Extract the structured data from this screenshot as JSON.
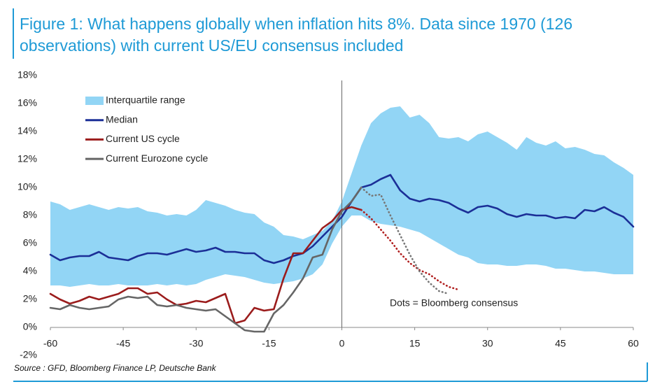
{
  "chart_data": {
    "type": "line",
    "title_lines": [
      "Figure 1: What happens globally when inflation hits 8%. Data since 1970 (126",
      "observations) with current US/EU consensus included"
    ],
    "source": "Source : GFD, Bloomberg Finance LP, Deutsche Bank",
    "annotation": "Dots = Bloomberg consensus",
    "x": [
      -60,
      -58,
      -56,
      -54,
      -52,
      -50,
      -48,
      -46,
      -44,
      -42,
      -40,
      -38,
      -36,
      -34,
      -32,
      -30,
      -28,
      -26,
      -24,
      -22,
      -20,
      -18,
      -16,
      -14,
      -12,
      -10,
      -8,
      -6,
      -4,
      -2,
      0,
      2,
      4,
      6,
      8,
      10,
      12,
      14,
      16,
      18,
      20,
      22,
      24,
      26,
      28,
      30,
      32,
      34,
      36,
      38,
      40,
      42,
      44,
      46,
      48,
      50,
      52,
      54,
      56,
      58,
      60
    ],
    "xlim": [
      -60,
      60
    ],
    "xticks": [
      -60,
      -45,
      -30,
      -15,
      0,
      15,
      30,
      45,
      60
    ],
    "ylim": [
      -2,
      18
    ],
    "yticks": [
      {
        "value": -2,
        "label": "-2%"
      },
      {
        "value": 0,
        "label": "0%"
      },
      {
        "value": 2,
        "label": "2%"
      },
      {
        "value": 4,
        "label": "4%"
      },
      {
        "value": 6,
        "label": "6%"
      },
      {
        "value": 8,
        "label": "8%"
      },
      {
        "value": 10,
        "label": "10%"
      },
      {
        "value": 12,
        "label": "12%"
      },
      {
        "value": 14,
        "label": "14%"
      },
      {
        "value": 16,
        "label": "16%"
      },
      {
        "value": 18,
        "label": "18%"
      }
    ],
    "band": {
      "name": "Interquartile range",
      "color": "#92d5f5",
      "upper": [
        9.0,
        8.8,
        8.4,
        8.6,
        8.8,
        8.6,
        8.4,
        8.6,
        8.5,
        8.6,
        8.3,
        8.2,
        8.0,
        8.1,
        8.0,
        8.4,
        9.1,
        8.9,
        8.7,
        8.4,
        8.2,
        8.1,
        7.5,
        7.2,
        6.6,
        6.5,
        6.3,
        6.6,
        6.9,
        7.6,
        9.0,
        11.0,
        13.0,
        14.6,
        15.3,
        15.7,
        15.8,
        15.0,
        15.2,
        14.6,
        13.6,
        13.5,
        13.6,
        13.3,
        13.8,
        14.0,
        13.6,
        13.2,
        12.7,
        13.6,
        13.2,
        13.0,
        13.3,
        12.8,
        12.9,
        12.7,
        12.4,
        12.3,
        11.8,
        11.4,
        10.9
      ],
      "lower": [
        3.0,
        3.0,
        2.9,
        3.0,
        3.1,
        3.0,
        3.0,
        3.1,
        3.0,
        3.0,
        3.0,
        3.1,
        3.0,
        3.1,
        3.0,
        3.1,
        3.4,
        3.6,
        3.8,
        3.7,
        3.6,
        3.4,
        3.2,
        3.1,
        3.2,
        3.3,
        3.5,
        3.8,
        4.5,
        6.0,
        7.2,
        8.0,
        8.0,
        7.6,
        7.4,
        7.3,
        7.2,
        7.0,
        6.8,
        6.4,
        6.0,
        5.6,
        5.2,
        5.0,
        4.6,
        4.5,
        4.5,
        4.4,
        4.4,
        4.5,
        4.5,
        4.4,
        4.2,
        4.2,
        4.1,
        4.0,
        4.0,
        3.9,
        3.8,
        3.8,
        3.8
      ]
    },
    "series": [
      {
        "name": "Median",
        "color": "#1b2f97",
        "style": "solid",
        "values": [
          5.2,
          4.8,
          5.0,
          5.1,
          5.1,
          5.4,
          5.0,
          4.9,
          4.8,
          5.1,
          5.3,
          5.3,
          5.2,
          5.4,
          5.6,
          5.4,
          5.5,
          5.7,
          5.4,
          5.4,
          5.3,
          5.3,
          4.8,
          4.6,
          4.8,
          5.1,
          5.3,
          5.8,
          6.5,
          7.2,
          7.9,
          9.0,
          10.0,
          10.2,
          10.6,
          10.9,
          9.8,
          9.2,
          9.0,
          9.2,
          9.1,
          8.9,
          8.5,
          8.2,
          8.6,
          8.7,
          8.5,
          8.1,
          7.9,
          8.1,
          8.0,
          8.0,
          7.8,
          7.9,
          7.8,
          8.4,
          8.3,
          8.6,
          8.2,
          7.9,
          7.2
        ]
      },
      {
        "name": "Current US cycle",
        "color": "#9b1c1c",
        "style": "solid",
        "values": [
          2.4,
          2.0,
          1.7,
          1.9,
          2.2,
          2.0,
          2.2,
          2.4,
          2.8,
          2.8,
          2.4,
          2.5,
          2.0,
          1.6,
          1.7,
          1.9,
          1.8,
          2.1,
          2.4,
          0.3,
          0.5,
          1.4,
          1.2,
          1.3,
          3.5,
          5.3,
          5.3,
          6.2,
          7.1,
          7.6,
          8.4,
          8.6,
          8.4,
          null,
          null,
          null,
          null,
          null,
          null,
          null,
          null,
          null,
          null,
          null,
          null,
          null,
          null,
          null,
          null,
          null,
          null,
          null,
          null,
          null,
          null,
          null,
          null,
          null,
          null,
          null,
          null
        ]
      },
      {
        "name": "Current Eurozone cycle",
        "color": "#666666",
        "style": "solid",
        "values": [
          1.4,
          1.3,
          1.6,
          1.4,
          1.3,
          1.4,
          1.5,
          2.0,
          2.2,
          2.1,
          2.2,
          1.6,
          1.5,
          1.6,
          1.4,
          1.3,
          1.2,
          1.3,
          0.8,
          0.3,
          -0.2,
          -0.3,
          -0.3,
          1.0,
          1.6,
          2.5,
          3.5,
          5.0,
          5.2,
          7.0,
          8.3,
          9.0,
          10.0,
          null,
          null,
          null,
          null,
          null,
          null,
          null,
          null,
          null,
          null,
          null,
          null,
          null,
          null,
          null,
          null,
          null,
          null,
          null,
          null,
          null,
          null,
          null,
          null,
          null,
          null,
          null,
          null
        ]
      },
      {
        "color": "#b01e1e",
        "style": "dotted",
        "values": [
          null,
          null,
          null,
          null,
          null,
          null,
          null,
          null,
          null,
          null,
          null,
          null,
          null,
          null,
          null,
          null,
          null,
          null,
          null,
          null,
          null,
          null,
          null,
          null,
          null,
          null,
          null,
          null,
          null,
          null,
          null,
          null,
          8.4,
          7.8,
          7.0,
          6.2,
          5.3,
          4.6,
          4.1,
          3.8,
          3.3,
          2.9,
          2.7,
          null,
          null,
          null,
          null,
          null,
          null,
          null,
          null,
          null,
          null,
          null,
          null,
          null,
          null,
          null,
          null,
          null,
          null
        ]
      },
      {
        "color": "#777777",
        "style": "dotted",
        "values": [
          null,
          null,
          null,
          null,
          null,
          null,
          null,
          null,
          null,
          null,
          null,
          null,
          null,
          null,
          null,
          null,
          null,
          null,
          null,
          null,
          null,
          null,
          null,
          null,
          null,
          null,
          null,
          null,
          null,
          null,
          null,
          null,
          10.0,
          9.4,
          9.5,
          8.0,
          6.6,
          5.2,
          4.0,
          3.2,
          2.6,
          2.4,
          null,
          null,
          null,
          null,
          null,
          null,
          null,
          null,
          null,
          null,
          null,
          null,
          null,
          null,
          null,
          null,
          null,
          null,
          null
        ]
      }
    ]
  }
}
